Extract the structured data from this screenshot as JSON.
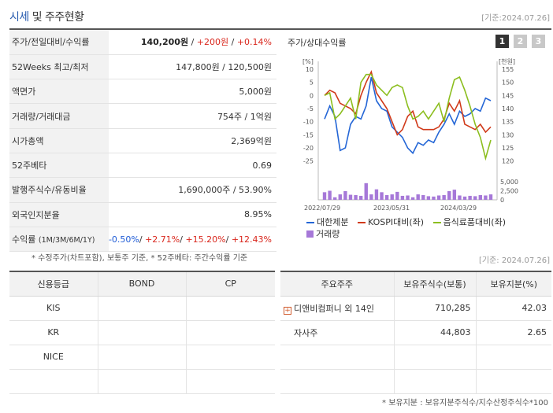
{
  "header": {
    "title_accent": "시세",
    "title_rest": " 및 주주현황",
    "date": "[기준:2024.07.26]"
  },
  "info_rows": {
    "price": {
      "label": "주가/전일대비/수익률",
      "price": "140,200원",
      "sep1": " / ",
      "change": "+200원",
      "sep2": " / ",
      "pct": "+0.14%"
    },
    "week52": {
      "label": "52Weeks 최고/최저",
      "value": "147,800원 / 120,500원"
    },
    "par": {
      "label": "액면가",
      "value": "5,000원"
    },
    "volume": {
      "label": "거래량/거래대금",
      "value": "754주 / 1억원"
    },
    "mcap": {
      "label": "시가총액",
      "value": "2,369억원"
    },
    "beta": {
      "label": "52주베타",
      "value": "0.69"
    },
    "shares": {
      "label": "발행주식수/유동비율",
      "value": "1,690,000주 / 53.90%"
    },
    "foreign": {
      "label": "외국인지분율",
      "value": "8.95%"
    },
    "returns": {
      "label": "수익률",
      "label_sub": "(1M/3M/6M/1Y)",
      "r1": "-0.50%",
      "r2": "+2.71%",
      "r3": "+15.20%",
      "r4": "+12.43%",
      "sep": "/ "
    }
  },
  "note_left": "* 수정주가(차트포함), 보통주 기준, * 52주베타: 주간수익률 기준",
  "date_mid": "[기준: 2024.07.26]",
  "chart_panel": {
    "title": "주가/상대수익률",
    "tabs": [
      "1",
      "2",
      "3"
    ],
    "legend": {
      "s1": "대한제분",
      "s2": "KOSPI대비(좌)",
      "s3": "음식료품대비(좌)",
      "s4": "거래량"
    }
  },
  "chart_data": {
    "type": "line",
    "left_axis_unit": "[%]",
    "right_axis_unit": "[천원]",
    "left_ticks": [
      "10",
      "5",
      "0",
      "-5",
      "-10",
      "-15",
      "-20",
      "-25"
    ],
    "right_ticks": [
      "155",
      "150",
      "145",
      "140",
      "135",
      "130",
      "125",
      "120"
    ],
    "volume_ticks": [
      "5,000",
      "2,500",
      "0"
    ],
    "x_tick_labels": [
      "2022/07/29",
      "2023/05/31",
      "2024/03/29"
    ],
    "left_range": [
      -29,
      10
    ],
    "right_range": [
      116,
      155
    ],
    "volume_range": [
      0,
      5000
    ],
    "series": [
      {
        "name": "대한제분",
        "axis": "right",
        "color": "#2466d6",
        "values": [
          136,
          141,
          137,
          124,
          125,
          134,
          137,
          136,
          141,
          152,
          143,
          140,
          139,
          133,
          131,
          129,
          125,
          123,
          127,
          126,
          128,
          127,
          131,
          134,
          138,
          134,
          139,
          137,
          138,
          140,
          139,
          144,
          143
        ]
      },
      {
        "name": "KOSPI대비(좌)",
        "axis": "left",
        "color": "#d03a1a",
        "values": [
          0,
          2,
          1,
          -3,
          -4,
          -5,
          -7,
          0,
          5,
          9,
          1,
          -2,
          -5,
          -10,
          -15,
          -13,
          -8,
          -6,
          -12,
          -13,
          -13,
          -13,
          -12,
          -9,
          -3,
          -6,
          -2,
          -11,
          -12,
          -13,
          -11,
          -14,
          -12
        ]
      },
      {
        "name": "음식료품대비(좌)",
        "axis": "left",
        "color": "#8cbe1f",
        "values": [
          0,
          1,
          -9,
          -7,
          -4,
          -1,
          -9,
          5,
          8,
          8,
          4,
          2,
          0,
          3,
          4,
          3,
          -4,
          -9,
          -8,
          -6,
          -9,
          -6,
          -3,
          -10,
          -1,
          6,
          7,
          2,
          -4,
          -11,
          -16,
          -24,
          -17
        ]
      },
      {
        "name": "거래량",
        "axis": "volume",
        "color": "#a678d8",
        "values": [
          2100,
          2500,
          700,
          1500,
          2400,
          1400,
          1300,
          1100,
          4600,
          1500,
          2900,
          2100,
          1300,
          1500,
          2200,
          1100,
          1200,
          700,
          1500,
          1300,
          1000,
          900,
          1200,
          1300,
          2400,
          2800,
          1200,
          900,
          1100,
          1000,
          1300,
          1200,
          1500
        ]
      }
    ]
  },
  "credit_table": {
    "headers": [
      "신용등급",
      "BOND",
      "CP"
    ],
    "rows": [
      {
        "agency": "KIS",
        "bond": "",
        "cp": ""
      },
      {
        "agency": "KR",
        "bond": "",
        "cp": ""
      },
      {
        "agency": "NICE",
        "bond": "",
        "cp": ""
      },
      {
        "agency": "",
        "bond": "",
        "cp": ""
      }
    ]
  },
  "holders_table": {
    "headers": [
      "주요주주",
      "보유주식수(보통)",
      "보유지분(%)"
    ],
    "expand_icon": "plus-square-icon",
    "rows": [
      {
        "name": "디앤비컴퍼니 외 14인",
        "shares": "710,285",
        "pct": "42.03"
      },
      {
        "name": "자사주",
        "shares": "44,803",
        "pct": "2.65"
      },
      {
        "name": "",
        "shares": "",
        "pct": ""
      },
      {
        "name": "",
        "shares": "",
        "pct": ""
      }
    ]
  },
  "note_bottom": "* 보유지분 : 보유지분주식수/지수산정주식수*100"
}
